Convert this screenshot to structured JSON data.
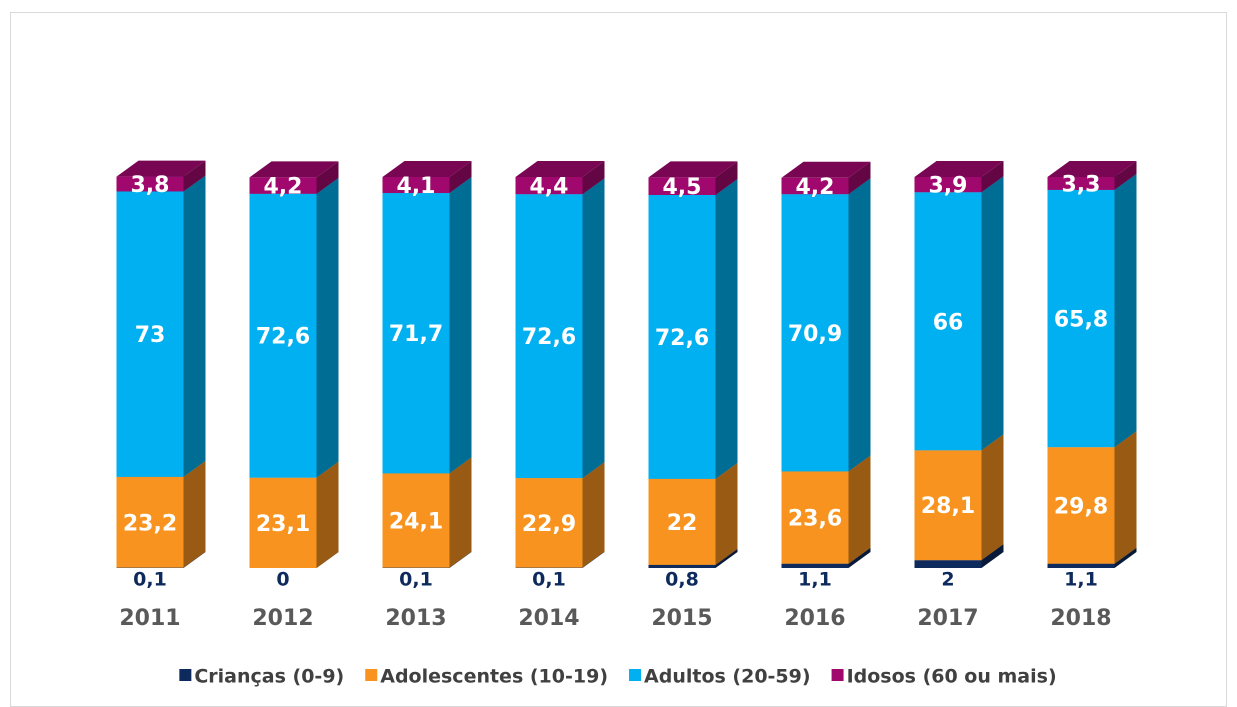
{
  "chart_data": {
    "type": "stacked_bar_3d",
    "categories": [
      "2011",
      "2012",
      "2013",
      "2014",
      "2015",
      "2016",
      "2017",
      "2018"
    ],
    "series": [
      {
        "name": "Crianças (0-9)",
        "color": "#0e2a5c",
        "values": [
          0.1,
          0,
          0.1,
          0.1,
          0.8,
          1.1,
          2,
          1.1
        ],
        "value_labels": [
          "0,1",
          "0",
          "0,1",
          "0,1",
          "0,8",
          "1,1",
          "2",
          "1,1"
        ]
      },
      {
        "name": "Adolescentes (10-19)",
        "color": "#f7931e",
        "values": [
          23.2,
          23.1,
          24.1,
          22.9,
          22,
          23.6,
          28.1,
          29.8
        ],
        "value_labels": [
          "23,2",
          "23,1",
          "24,1",
          "22,9",
          "22",
          "23,6",
          "28,1",
          "29,8"
        ]
      },
      {
        "name": "Adultos (20-59)",
        "color": "#00b0f0",
        "values": [
          73,
          72.6,
          71.7,
          72.6,
          72.6,
          70.9,
          66,
          65.8
        ],
        "value_labels": [
          "73",
          "72,6",
          "71,7",
          "72,6",
          "72,6",
          "70,9",
          "66",
          "65,8"
        ]
      },
      {
        "name": "Idosos (60 ou mais)",
        "color": "#a1086e",
        "values": [
          3.8,
          4.2,
          4.1,
          4.4,
          4.5,
          4.2,
          3.9,
          3.3
        ],
        "value_labels": [
          "3,8",
          "4,2",
          "4,1",
          "4,4",
          "4,5",
          "4,2",
          "3,9",
          "3,3"
        ]
      }
    ],
    "ylim": [
      0,
      100
    ]
  }
}
